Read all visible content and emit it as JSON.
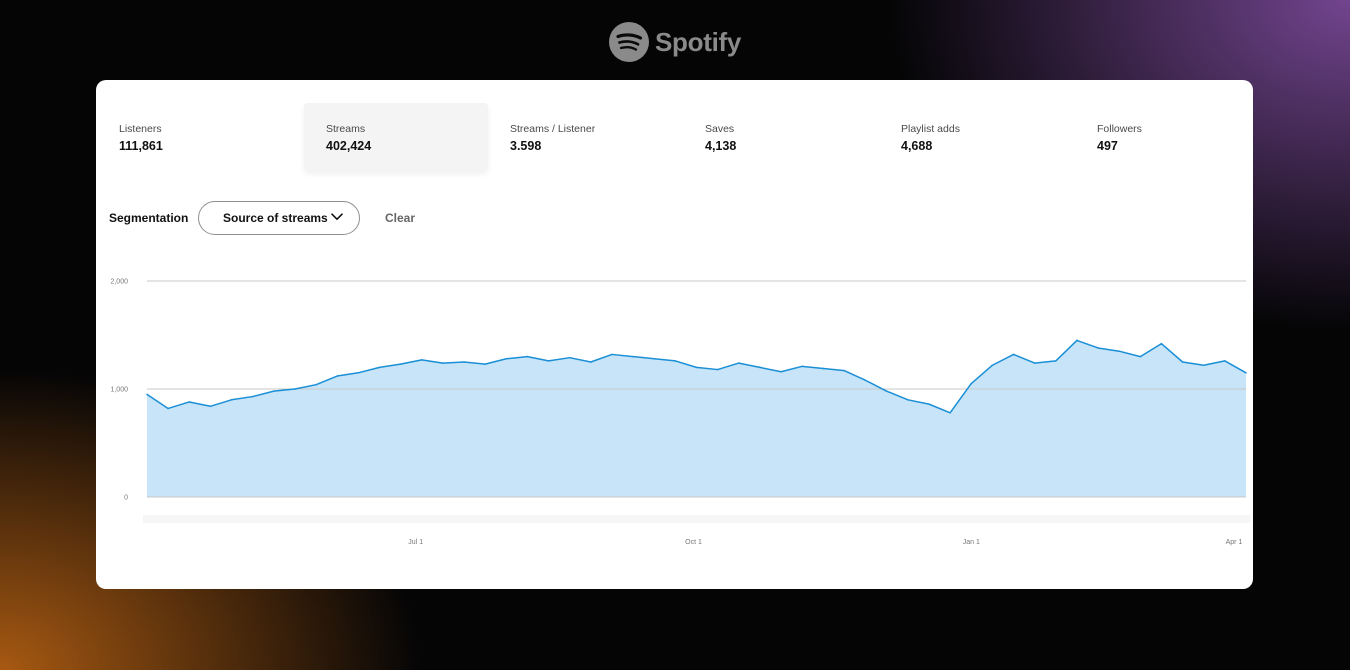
{
  "brand": {
    "name": "Spotify",
    "icon": "spotify-logo-icon"
  },
  "metrics": [
    {
      "label": "Listeners",
      "value": "111,861"
    },
    {
      "label": "Streams",
      "value": "402,424",
      "active": true
    },
    {
      "label": "Streams / Listener",
      "value": "3.598"
    },
    {
      "label": "Saves",
      "value": "4,138"
    },
    {
      "label": "Playlist adds",
      "value": "4,688"
    },
    {
      "label": "Followers",
      "value": "497"
    }
  ],
  "segmentation": {
    "label": "Segmentation",
    "dropdown_value": "Source of streams",
    "dropdown_icon": "chevron-down-icon",
    "clear_label": "Clear"
  },
  "colors": {
    "line": "#1a8fd6",
    "fill": "#c8e4f8",
    "grid": "#c9c9c9"
  },
  "chart_data": {
    "type": "area",
    "ylim": [
      0,
      2000
    ],
    "yticks": [
      {
        "value": 0,
        "label": "0"
      },
      {
        "value": 1000,
        "label": "1,000"
      },
      {
        "value": 2000,
        "label": "2,000"
      }
    ],
    "xticks": [
      {
        "date": "2023-07-01",
        "label": "Jul 1"
      },
      {
        "date": "2023-10-01",
        "label": "Oct 1"
      },
      {
        "date": "2024-01-01",
        "label": "Jan 1"
      },
      {
        "date": "2024-04-01",
        "label": "Apr 1"
      }
    ],
    "series": [
      {
        "x": [
          "2023-04-03",
          "2023-04-10",
          "2023-04-17",
          "2023-04-24",
          "2023-05-01",
          "2023-05-08",
          "2023-05-15",
          "2023-05-22",
          "2023-05-29",
          "2023-06-05",
          "2023-06-12",
          "2023-06-19",
          "2023-06-26",
          "2023-07-03",
          "2023-07-10",
          "2023-07-17",
          "2023-07-24",
          "2023-07-31",
          "2023-08-07",
          "2023-08-14",
          "2023-08-21",
          "2023-08-28",
          "2023-09-04",
          "2023-09-11",
          "2023-09-18",
          "2023-09-25",
          "2023-10-02",
          "2023-10-09",
          "2023-10-16",
          "2023-10-23",
          "2023-10-30",
          "2023-11-06",
          "2023-11-13",
          "2023-11-20",
          "2023-11-27",
          "2023-12-04",
          "2023-12-11",
          "2023-12-18",
          "2023-12-25",
          "2024-01-01",
          "2024-01-08",
          "2024-01-15",
          "2024-01-22",
          "2024-01-29",
          "2024-02-05",
          "2024-02-12",
          "2024-02-19",
          "2024-02-26",
          "2024-03-04",
          "2024-03-11",
          "2024-03-18",
          "2024-03-25",
          "2024-04-01"
        ],
        "y": [
          950,
          820,
          880,
          840,
          900,
          930,
          980,
          1000,
          1040,
          1120,
          1150,
          1200,
          1230,
          1270,
          1240,
          1250,
          1230,
          1280,
          1300,
          1260,
          1290,
          1250,
          1320,
          1300,
          1280,
          1260,
          1200,
          1180,
          1240,
          1200,
          1160,
          1210,
          1190,
          1170,
          1080,
          980,
          900,
          860,
          780,
          1050,
          1220,
          1320,
          1240,
          1260,
          1450,
          1380,
          1350,
          1300,
          1420,
          1250,
          1220,
          1260,
          1150
        ]
      }
    ]
  }
}
